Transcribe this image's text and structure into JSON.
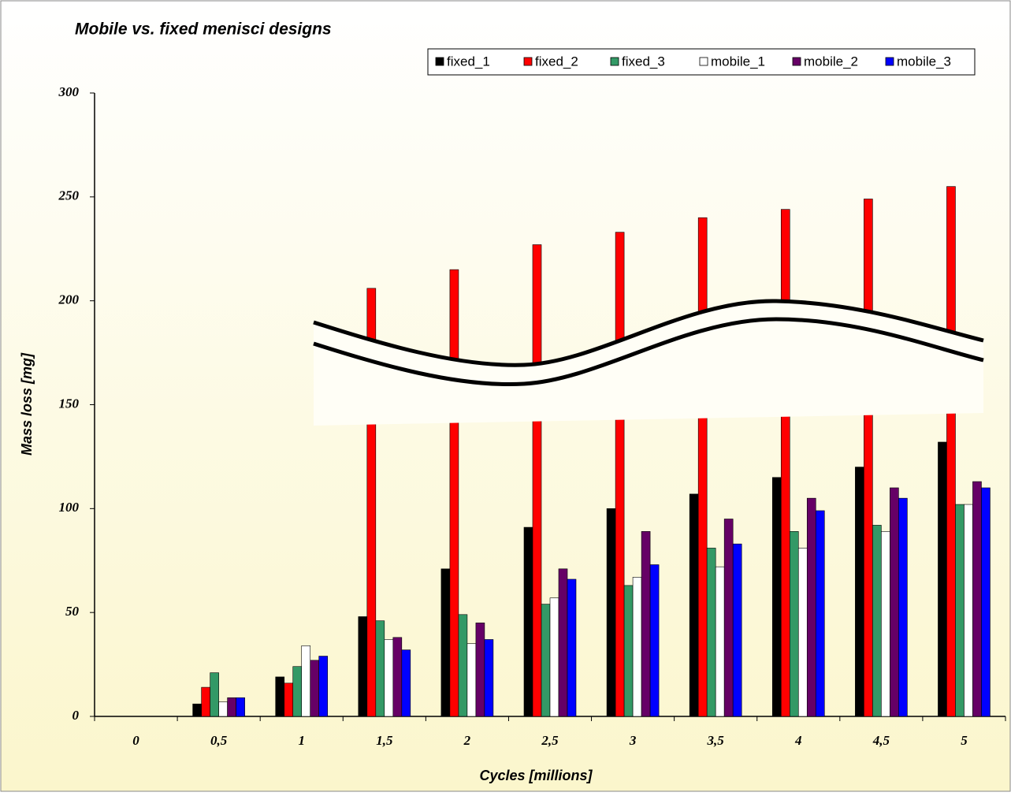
{
  "chart_data": {
    "type": "bar",
    "title": "Mobile vs. fixed menisci designs",
    "x_label": "Cycles [millions]",
    "y_label": "Mass loss [mg]",
    "categories": [
      "0",
      "0,5",
      "1",
      "1,5",
      "2",
      "2,5",
      "3",
      "3,5",
      "4",
      "4,5",
      "5"
    ],
    "series": [
      {
        "name": "fixed_1",
        "color": "#000000",
        "values": [
          0,
          6,
          19,
          48,
          71,
          91,
          100,
          107,
          115,
          120,
          132
        ]
      },
      {
        "name": "fixed_2",
        "color": "#ff0000",
        "values": [
          0,
          14,
          16,
          206,
          215,
          227,
          233,
          240,
          244,
          249,
          255
        ]
      },
      {
        "name": "fixed_3",
        "color": "#339966",
        "values": [
          0,
          21,
          24,
          46,
          49,
          54,
          63,
          81,
          89,
          92,
          102
        ]
      },
      {
        "name": "mobile_1",
        "color": "#ffffff",
        "values": [
          0,
          7,
          34,
          37,
          35,
          57,
          67,
          72,
          81,
          89,
          102
        ]
      },
      {
        "name": "mobile_2",
        "color": "#660066",
        "values": [
          0,
          9,
          27,
          38,
          45,
          71,
          89,
          95,
          105,
          110,
          113
        ]
      },
      {
        "name": "mobile_3",
        "color": "#0000ff",
        "values": [
          0,
          9,
          29,
          32,
          37,
          66,
          73,
          83,
          99,
          105,
          110
        ]
      }
    ],
    "ylim": [
      0,
      300
    ],
    "yticks": [
      0,
      50,
      100,
      150,
      200,
      250,
      300
    ],
    "legend": "top-right"
  }
}
